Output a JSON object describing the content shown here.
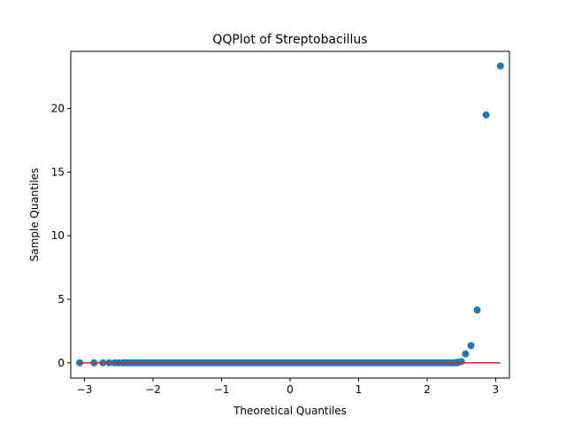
{
  "chart_data": {
    "type": "scatter",
    "title": "QQPlot of Streptobacillus",
    "xlabel": "Theoretical Quantiles",
    "ylabel": "Sample Quantiles",
    "xlim": [
      -3.2,
      3.2
    ],
    "ylim": [
      -1.2,
      24.5
    ],
    "x_ticks": [
      -3,
      -2,
      -1,
      0,
      1,
      2,
      3
    ],
    "x_tick_labels": [
      "−3",
      "−2",
      "−1",
      "0",
      "1",
      "2",
      "3"
    ],
    "y_ticks": [
      0,
      5,
      10,
      15,
      20
    ],
    "y_tick_labels": [
      "0",
      "5",
      "10",
      "15",
      "20"
    ],
    "grid": false,
    "series": [
      {
        "marker_color": "#1f77b4",
        "points": [
          {
            "x": -3.07,
            "y": 0.0
          },
          {
            "x": -2.86,
            "y": 0.0
          },
          {
            "x": -2.73,
            "y": 0.0
          },
          {
            "x": -2.64,
            "y": 0.0
          },
          {
            "x": -2.56,
            "y": 0.0
          },
          {
            "x": -2.5,
            "y": 0.0
          },
          {
            "x": -2.44,
            "y": 0.0
          },
          {
            "x": 2.44,
            "y": 0.05
          },
          {
            "x": 2.5,
            "y": 0.1
          },
          {
            "x": 2.56,
            "y": 0.7
          },
          {
            "x": 2.64,
            "y": 1.35
          },
          {
            "x": 2.73,
            "y": 4.15
          },
          {
            "x": 2.86,
            "y": 19.5
          },
          {
            "x": 3.07,
            "y": 23.35
          }
        ],
        "dense_band": {
          "x_range": [
            -2.44,
            2.44
          ],
          "y": 0.0
        }
      }
    ],
    "reference_line": {
      "color": "#d62728",
      "x_range": [
        -3.07,
        3.07
      ],
      "y": 0.0
    }
  }
}
